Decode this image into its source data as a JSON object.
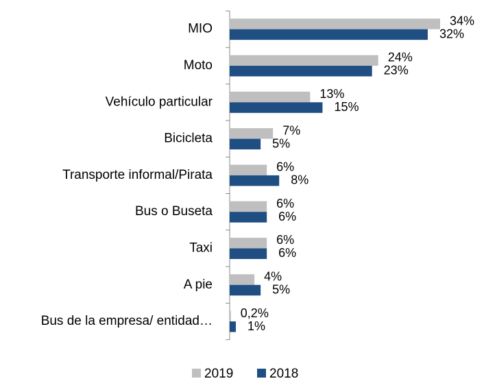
{
  "chart_data": {
    "type": "hbar",
    "categories": [
      "MIO",
      "Moto",
      "Vehículo particular",
      "Bicicleta",
      "Transporte informal/Pirata",
      "Bus o Buseta",
      "Taxi",
      "A pie",
      "Bus de la empresa/ entidad…"
    ],
    "series": [
      {
        "name": "2019",
        "color": "#bfbfbf",
        "values": [
          34,
          24,
          13,
          7,
          6,
          6,
          6,
          4,
          0.2
        ],
        "value_labels": [
          "34%",
          "24%",
          "13%",
          "7%",
          "6%",
          "6%",
          "6%",
          "4%",
          "0,2%"
        ]
      },
      {
        "name": "2018",
        "color": "#1f4e82",
        "values": [
          32,
          23,
          15,
          5,
          8,
          6,
          6,
          5,
          1
        ],
        "value_labels": [
          "32%",
          "23%",
          "15%",
          "5%",
          "8%",
          "6%",
          "6%",
          "5%",
          "1%"
        ]
      }
    ],
    "legend": "bottom"
  }
}
